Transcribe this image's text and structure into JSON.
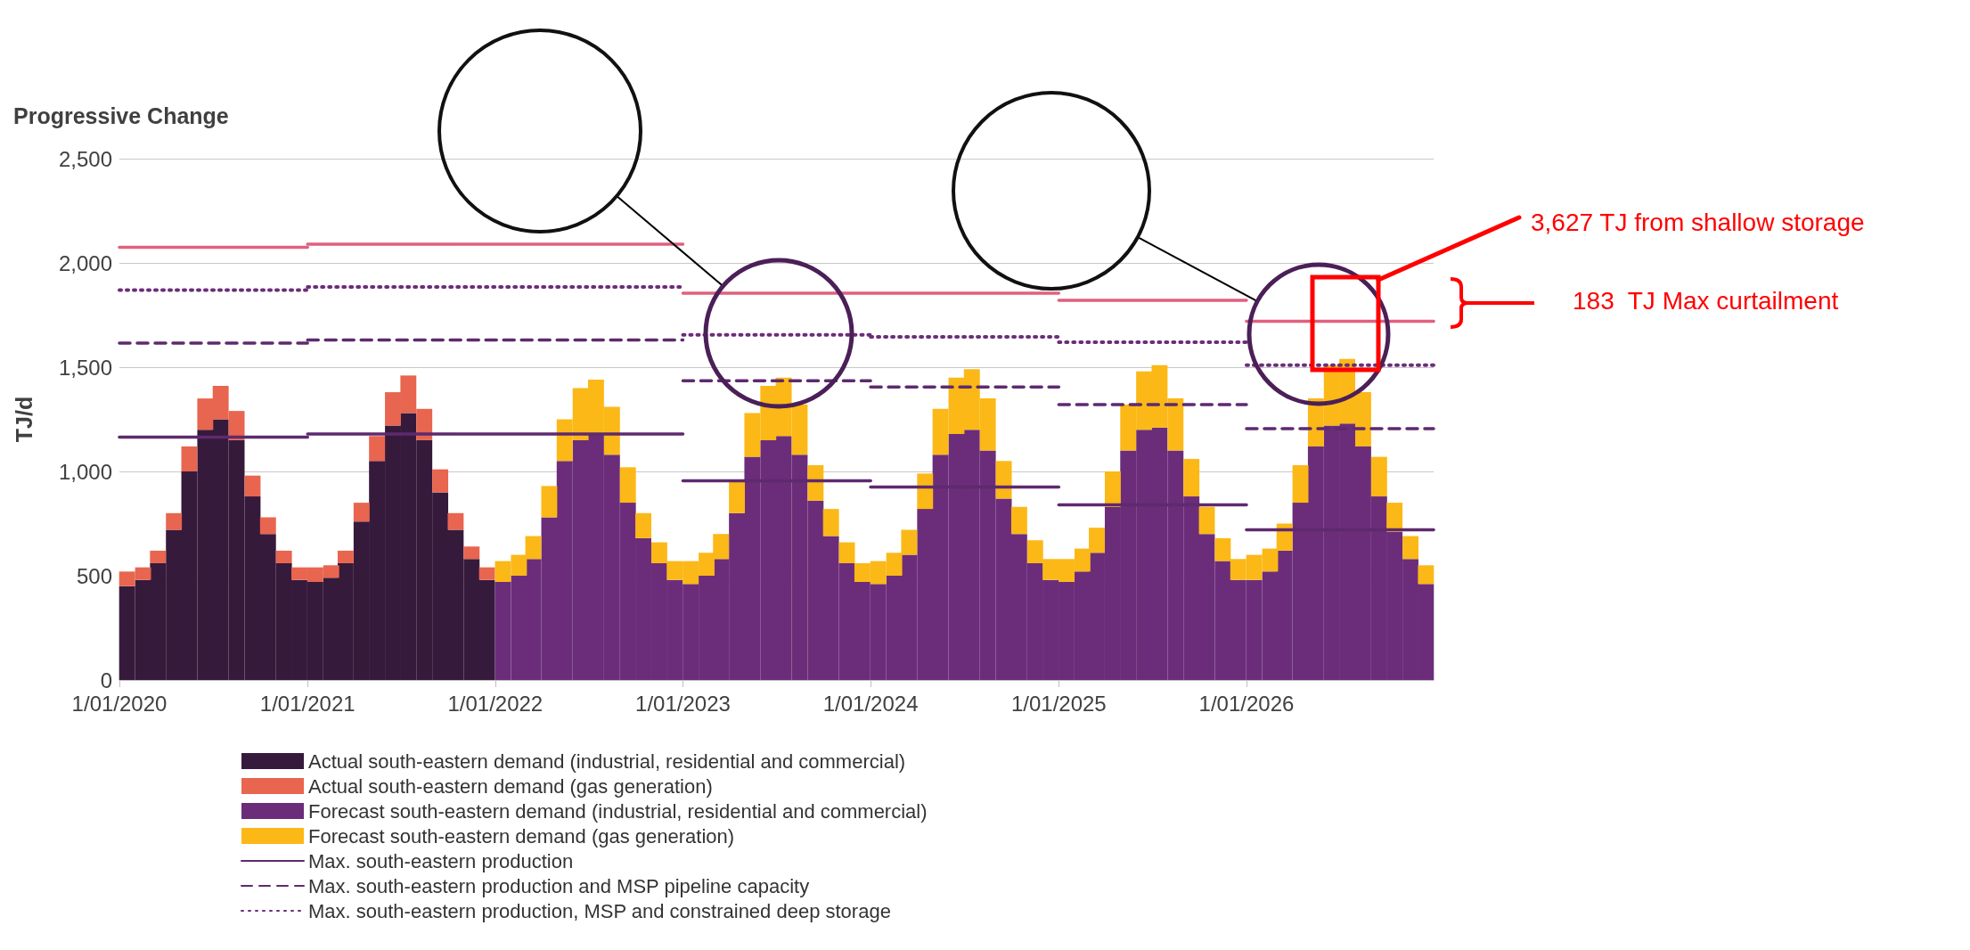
{
  "chart_data": {
    "type": "bar",
    "title": "Progressive Change",
    "ylabel": "TJ/d",
    "stacked": true,
    "grid": "y",
    "legend": "bottom",
    "xlim": [
      "2020-01-01",
      "2026-12-31"
    ],
    "xticks": [
      {
        "value": "2020-01-01",
        "label": "1/01/2020"
      },
      {
        "value": "2021-01-01",
        "label": "1/01/2021"
      },
      {
        "value": "2022-01-01",
        "label": "1/01/2022"
      },
      {
        "value": "2023-01-01",
        "label": "1/01/2023"
      },
      {
        "value": "2024-01-01",
        "label": "1/01/2024"
      },
      {
        "value": "2025-01-01",
        "label": "1/01/2025"
      },
      {
        "value": "2026-01-01",
        "label": "1/01/2026"
      }
    ],
    "ylim": [
      0,
      2500
    ],
    "yticks": [
      0,
      500,
      {
        "value": 1000,
        "label": "1,000"
      },
      {
        "value": 1500,
        "label": "1,500"
      },
      {
        "value": 2000,
        "label": "2,000"
      },
      {
        "value": 2500,
        "label": "2,500"
      }
    ],
    "annotations": [
      "3,627 TJ from shallow storage",
      "183  TJ Max curtailment"
    ],
    "x": [
      "2020-01-16",
      "2020-02-16",
      "2020-03-16",
      "2020-04-16",
      "2020-05-16",
      "2020-06-16",
      "2020-07-16",
      "2020-08-16",
      "2020-09-16",
      "2020-10-16",
      "2020-11-16",
      "2020-12-16",
      "2021-01-16",
      "2021-02-16",
      "2021-03-16",
      "2021-04-16",
      "2021-05-16",
      "2021-06-16",
      "2021-07-16",
      "2021-08-16",
      "2021-09-16",
      "2021-10-16",
      "2021-11-16",
      "2021-12-16",
      "2022-01-16",
      "2022-02-16",
      "2022-03-16",
      "2022-04-16",
      "2022-05-16",
      "2022-06-16",
      "2022-07-16",
      "2022-08-16",
      "2022-09-16",
      "2022-10-16",
      "2022-11-16",
      "2022-12-16",
      "2023-01-16",
      "2023-02-16",
      "2023-03-16",
      "2023-04-16",
      "2023-05-16",
      "2023-06-16",
      "2023-07-16",
      "2023-08-16",
      "2023-09-16",
      "2023-10-16",
      "2023-11-16",
      "2023-12-16",
      "2024-01-16",
      "2024-02-16",
      "2024-03-16",
      "2024-04-16",
      "2024-05-16",
      "2024-06-16",
      "2024-07-16",
      "2024-08-16",
      "2024-09-16",
      "2024-10-16",
      "2024-11-16",
      "2024-12-16",
      "2025-01-16",
      "2025-02-16",
      "2025-03-16",
      "2025-04-16",
      "2025-05-16",
      "2025-06-16",
      "2025-07-16",
      "2025-08-16",
      "2025-09-16",
      "2025-10-16",
      "2025-11-16",
      "2025-12-16",
      "2026-01-16",
      "2026-02-16",
      "2026-03-16",
      "2026-04-16",
      "2026-05-16",
      "2026-06-16",
      "2026-07-16",
      "2026-08-16",
      "2026-09-16",
      "2026-10-16",
      "2026-11-16",
      "2026-12-16"
    ],
    "series": [
      {
        "name": "Actual south-eastern demand (industrial, residential and commercial)",
        "color": "#361a3b",
        "values": [
          450,
          480,
          560,
          720,
          1000,
          1200,
          1250,
          1150,
          880,
          700,
          560,
          480,
          470,
          490,
          560,
          760,
          1050,
          1220,
          1280,
          1150,
          900,
          720,
          580,
          480,
          null,
          null,
          null,
          null,
          null,
          null,
          null,
          null,
          null,
          null,
          null,
          null,
          null,
          null,
          null,
          null,
          null,
          null,
          null,
          null,
          null,
          null,
          null,
          null,
          null,
          null,
          null,
          null,
          null,
          null,
          null,
          null,
          null,
          null,
          null,
          null,
          null,
          null,
          null,
          null,
          null,
          null,
          null,
          null,
          null,
          null,
          null,
          null,
          null,
          null,
          null,
          null,
          null,
          null,
          null,
          null,
          null,
          null,
          null,
          null
        ]
      },
      {
        "name": "Actual south-eastern demand (gas generation)",
        "color": "#e8654f",
        "values": [
          70,
          60,
          60,
          80,
          120,
          150,
          160,
          140,
          100,
          80,
          60,
          60,
          70,
          60,
          60,
          90,
          120,
          160,
          180,
          150,
          110,
          80,
          60,
          60,
          null,
          null,
          null,
          null,
          null,
          null,
          null,
          null,
          null,
          null,
          null,
          null,
          null,
          null,
          null,
          null,
          null,
          null,
          null,
          null,
          null,
          null,
          null,
          null,
          null,
          null,
          null,
          null,
          null,
          null,
          null,
          null,
          null,
          null,
          null,
          null,
          null,
          null,
          null,
          null,
          null,
          null,
          null,
          null,
          null,
          null,
          null,
          null,
          null,
          null,
          null,
          null,
          null,
          null,
          null,
          null,
          null,
          null,
          null,
          null
        ]
      },
      {
        "name": "Forecast south-eastern demand (industrial, residential and commercial)",
        "color": "#6b2d7a",
        "values": [
          null,
          null,
          null,
          null,
          null,
          null,
          null,
          null,
          null,
          null,
          null,
          null,
          null,
          null,
          null,
          null,
          null,
          null,
          null,
          null,
          null,
          null,
          null,
          null,
          470,
          500,
          580,
          780,
          1050,
          1150,
          1180,
          1080,
          850,
          680,
          560,
          480,
          460,
          500,
          580,
          800,
          1070,
          1150,
          1170,
          1080,
          860,
          690,
          560,
          470,
          460,
          500,
          600,
          820,
          1080,
          1180,
          1200,
          1100,
          870,
          700,
          560,
          480,
          470,
          520,
          610,
          830,
          1100,
          1200,
          1210,
          1100,
          880,
          700,
          570,
          480,
          480,
          520,
          620,
          850,
          1120,
          1220,
          1230,
          1120,
          880,
          710,
          580,
          460
        ]
      },
      {
        "name": "Forecast south-eastern demand (gas generation)",
        "color": "#fbb817",
        "values": [
          null,
          null,
          null,
          null,
          null,
          null,
          null,
          null,
          null,
          null,
          null,
          null,
          null,
          null,
          null,
          null,
          null,
          null,
          null,
          null,
          null,
          null,
          null,
          null,
          100,
          100,
          110,
          150,
          200,
          250,
          260,
          230,
          170,
          120,
          100,
          90,
          110,
          110,
          120,
          160,
          210,
          260,
          280,
          240,
          170,
          130,
          100,
          90,
          110,
          110,
          120,
          170,
          220,
          270,
          290,
          250,
          180,
          130,
          110,
          100,
          110,
          110,
          120,
          170,
          220,
          280,
          300,
          250,
          180,
          130,
          110,
          100,
          120,
          110,
          130,
          180,
          230,
          290,
          310,
          260,
          190,
          140,
          110,
          90
        ]
      },
      {
        "type": "line",
        "color": "#e0607e",
        "line_style": "solid",
        "x": [
          "2020-01-01",
          "2021-01-01"
        ],
        "values": [
          2075,
          2075
        ]
      },
      {
        "type": "line",
        "color": "#e0607e",
        "line_style": "solid",
        "x": [
          "2021-01-01",
          "2023-01-01"
        ],
        "values": [
          2090,
          2090
        ]
      },
      {
        "type": "line",
        "color": "#e0607e",
        "line_style": "solid",
        "x": [
          "2023-01-01",
          "2025-01-01"
        ],
        "values": [
          1855,
          1855
        ]
      },
      {
        "type": "line",
        "color": "#e0607e",
        "line_style": "solid",
        "x": [
          "2025-01-01",
          "2026-01-01"
        ],
        "values": [
          1820,
          1820
        ]
      },
      {
        "type": "line",
        "color": "#e0607e",
        "line_style": "solid",
        "x": [
          "2026-01-01",
          "2026-12-31"
        ],
        "values": [
          1720,
          1720
        ]
      },
      {
        "type": "line",
        "name": "Max. south-eastern production",
        "color": "#5e2a6e",
        "line_style": "solid",
        "x": [
          "2020-01-01",
          "2021-01-01"
        ],
        "values": [
          1165,
          1165
        ]
      },
      {
        "type": "line",
        "color": "#5e2a6e",
        "line_style": "solid",
        "x": [
          "2021-01-01",
          "2023-01-01"
        ],
        "values": [
          1180,
          1180
        ]
      },
      {
        "type": "line",
        "color": "#5e2a6e",
        "line_style": "solid",
        "x": [
          "2023-01-01",
          "2024-01-01"
        ],
        "values": [
          955,
          955
        ]
      },
      {
        "type": "line",
        "color": "#5e2a6e",
        "line_style": "solid",
        "x": [
          "2024-01-01",
          "2025-01-01"
        ],
        "values": [
          925,
          925
        ]
      },
      {
        "type": "line",
        "color": "#5e2a6e",
        "line_style": "solid",
        "x": [
          "2025-01-01",
          "2026-01-01"
        ],
        "values": [
          840,
          840
        ]
      },
      {
        "type": "line",
        "color": "#5e2a6e",
        "line_style": "solid",
        "x": [
          "2026-01-01",
          "2026-12-31"
        ],
        "values": [
          720,
          720
        ]
      },
      {
        "type": "line",
        "name": "Max. south-eastern production and MSP pipeline capacity",
        "color": "#5e2a6e",
        "line_style": "dashed",
        "x": [
          "2020-01-01",
          "2021-01-01"
        ],
        "values": [
          1615,
          1615
        ]
      },
      {
        "type": "line",
        "color": "#5e2a6e",
        "line_style": "dashed",
        "x": [
          "2021-01-01",
          "2023-01-01"
        ],
        "values": [
          1630,
          1630
        ]
      },
      {
        "type": "line",
        "color": "#5e2a6e",
        "line_style": "dashed",
        "x": [
          "2023-01-01",
          "2024-01-01"
        ],
        "values": [
          1435,
          1435
        ]
      },
      {
        "type": "line",
        "color": "#5e2a6e",
        "line_style": "dashed",
        "x": [
          "2024-01-01",
          "2025-01-01"
        ],
        "values": [
          1405,
          1405
        ]
      },
      {
        "type": "line",
        "color": "#5e2a6e",
        "line_style": "dashed",
        "x": [
          "2025-01-01",
          "2026-01-01"
        ],
        "values": [
          1320,
          1320
        ]
      },
      {
        "type": "line",
        "color": "#5e2a6e",
        "line_style": "dashed",
        "x": [
          "2026-01-01",
          "2026-12-31"
        ],
        "values": [
          1205,
          1205
        ]
      },
      {
        "type": "line",
        "name": "Max. south-eastern production, MSP and constrained deep storage",
        "color": "#6b2d7a",
        "line_style": "dotted",
        "x": [
          "2020-01-01",
          "2021-01-01"
        ],
        "values": [
          1870,
          1870
        ]
      },
      {
        "type": "line",
        "color": "#6b2d7a",
        "line_style": "dotted",
        "x": [
          "2021-01-01",
          "2023-01-01"
        ],
        "values": [
          1885,
          1885
        ]
      },
      {
        "type": "line",
        "color": "#6b2d7a",
        "line_style": "dotted",
        "x": [
          "2023-01-01",
          "2024-01-01"
        ],
        "values": [
          1655,
          1655
        ]
      },
      {
        "type": "line",
        "color": "#6b2d7a",
        "line_style": "dotted",
        "x": [
          "2024-01-01",
          "2025-01-01"
        ],
        "values": [
          1645,
          1645
        ]
      },
      {
        "type": "line",
        "color": "#6b2d7a",
        "line_style": "dotted",
        "x": [
          "2025-01-01",
          "2026-01-01"
        ],
        "values": [
          1620,
          1620
        ]
      },
      {
        "type": "line",
        "color": "#6b2d7a",
        "line_style": "dotted",
        "x": [
          "2026-01-01",
          "2026-12-31"
        ],
        "values": [
          1510,
          1510
        ]
      }
    ]
  }
}
